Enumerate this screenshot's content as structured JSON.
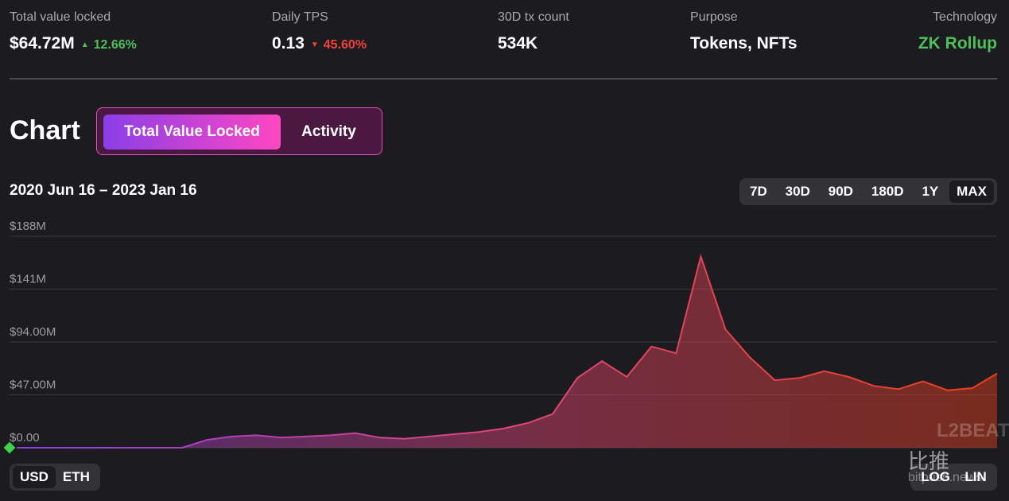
{
  "stats": [
    {
      "label": "Total value locked",
      "value": "$64.72M",
      "change": "12.66%",
      "direction": "up"
    },
    {
      "label": "Daily TPS",
      "value": "0.13",
      "change": "45.60%",
      "direction": "down"
    },
    {
      "label": "30D tx count",
      "value": "534K"
    },
    {
      "label": "Purpose",
      "value": "Tokens, NFTs"
    },
    {
      "label": "Technology",
      "value": "ZK Rollup",
      "color": "#4fbf5a"
    }
  ],
  "chart_heading": "Chart",
  "tabs": [
    "Total Value Locked",
    "Activity"
  ],
  "active_tab": 0,
  "date_range": "2020 Jun 16 – 2023 Jan 16",
  "ranges": [
    "7D",
    "30D",
    "90D",
    "180D",
    "1Y",
    "MAX"
  ],
  "active_range": 5,
  "chart_data": {
    "type": "area",
    "ylim": [
      0,
      188
    ],
    "yticks": [
      {
        "value": 0,
        "label": "$0.00"
      },
      {
        "value": 47,
        "label": "$47.00M"
      },
      {
        "value": 94,
        "label": "$94.00M"
      },
      {
        "value": 141,
        "label": "$141M"
      },
      {
        "value": 188,
        "label": "$188M"
      }
    ],
    "grid": true,
    "colors": [
      "#8a3ee8",
      "#e0457a",
      "#e8401c"
    ],
    "values": [
      0,
      0,
      0,
      0,
      0,
      0,
      0,
      0,
      7,
      10,
      11,
      9,
      10,
      11,
      13,
      9,
      8,
      10,
      12,
      14,
      17,
      22,
      30,
      62,
      77,
      63,
      90,
      84,
      170,
      105,
      80,
      60,
      62,
      68,
      63,
      55,
      52,
      59,
      51,
      53,
      66
    ]
  },
  "currency": [
    "USD",
    "ETH"
  ],
  "active_currency": 0,
  "scales": [
    "LOG",
    "LIN"
  ],
  "watermark": "L2BEAT",
  "overlay": [
    "比推",
    "bitpush.news"
  ]
}
